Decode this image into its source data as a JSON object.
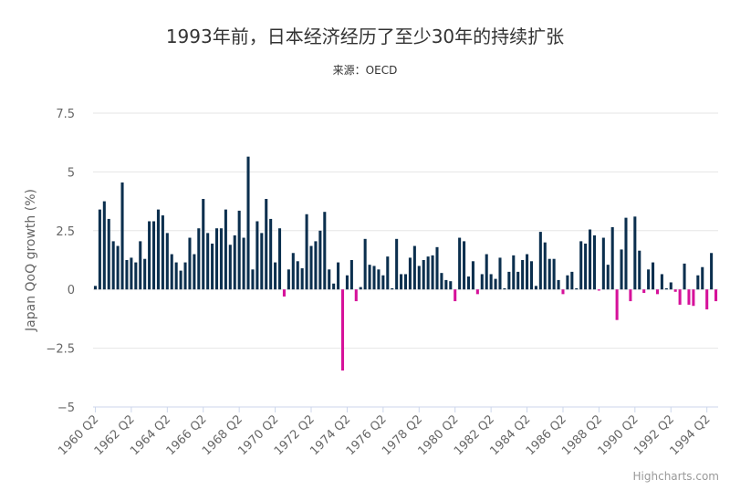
{
  "credits": "Highcharts.com",
  "chart_data": {
    "type": "bar",
    "title": "1993年前，日本经济经历了至少30年的持续扩张",
    "subtitle": "来源：OECD",
    "xlabel": "",
    "ylabel": "Japan QoQ growth (%)",
    "ylim": [
      -5,
      7.5
    ],
    "yticks": [
      "7.5",
      "5",
      "2.5",
      "0",
      "−2.5",
      "−5"
    ],
    "ytick_values": [
      7.5,
      5,
      2.5,
      0,
      -2.5,
      -5
    ],
    "xtick_labels": [
      "1960 Q2",
      "1962 Q2",
      "1964 Q2",
      "1966 Q2",
      "1968 Q2",
      "1970 Q2",
      "1972 Q2",
      "1974 Q2",
      "1976 Q2",
      "1978 Q2",
      "1980 Q2",
      "1982 Q2",
      "1984 Q2",
      "1986 Q2",
      "1988 Q2",
      "1990 Q2",
      "1992 Q2",
      "1994 Q2"
    ],
    "x_start": "1960 Q2",
    "grid": true,
    "colors": {
      "positive": "#0b2f4e",
      "negative": "#d6119a",
      "grid": "#e6e6e6",
      "axis_text": "#666666",
      "title": "#333333"
    },
    "series": [
      {
        "values": [
          0.15,
          3.4,
          3.75,
          3.0,
          2.05,
          1.85,
          4.55,
          1.25,
          1.35,
          1.15,
          2.05,
          1.3,
          2.9,
          2.9,
          3.4,
          3.15,
          2.4,
          1.5,
          1.15,
          0.8,
          1.15,
          2.2,
          1.5,
          2.6,
          3.85,
          2.4,
          1.95,
          2.6,
          2.6,
          3.4,
          1.9,
          2.3,
          3.35,
          2.2,
          5.65,
          0.85,
          2.9,
          2.4,
          3.85,
          3.0,
          1.15,
          2.6,
          -0.3,
          0.85,
          1.55,
          1.2,
          0.9,
          3.2,
          1.85,
          2.05,
          2.5,
          3.3,
          0.85,
          0.25,
          1.15,
          -3.45,
          0.6,
          1.25,
          -0.5,
          0.1,
          2.15,
          1.05,
          1.0,
          0.85,
          0.6,
          1.4,
          0.05,
          2.15,
          0.65,
          0.65,
          1.35,
          1.85,
          1.0,
          1.25,
          1.4,
          1.45,
          1.8,
          0.7,
          0.4,
          0.35,
          -0.5,
          2.2,
          2.05,
          0.55,
          1.2,
          -0.2,
          0.65,
          1.5,
          0.65,
          0.45,
          1.35,
          0.05,
          0.75,
          1.45,
          0.75,
          1.25,
          1.5,
          1.2,
          0.15,
          2.45,
          2.0,
          1.3,
          1.3,
          0.4,
          -0.2,
          0.6,
          0.75,
          0.05,
          2.05,
          1.95,
          2.55,
          2.3,
          -0.05,
          2.2,
          1.05,
          2.65,
          -1.3,
          1.7,
          3.05,
          -0.5,
          3.1,
          1.65,
          -0.15,
          0.85,
          1.15,
          -0.2,
          0.65,
          0.05,
          0.3,
          -0.1,
          -0.65,
          1.1,
          -0.65,
          -0.7,
          0.6,
          0.95,
          -0.85,
          1.55,
          -0.5
        ]
      }
    ]
  }
}
